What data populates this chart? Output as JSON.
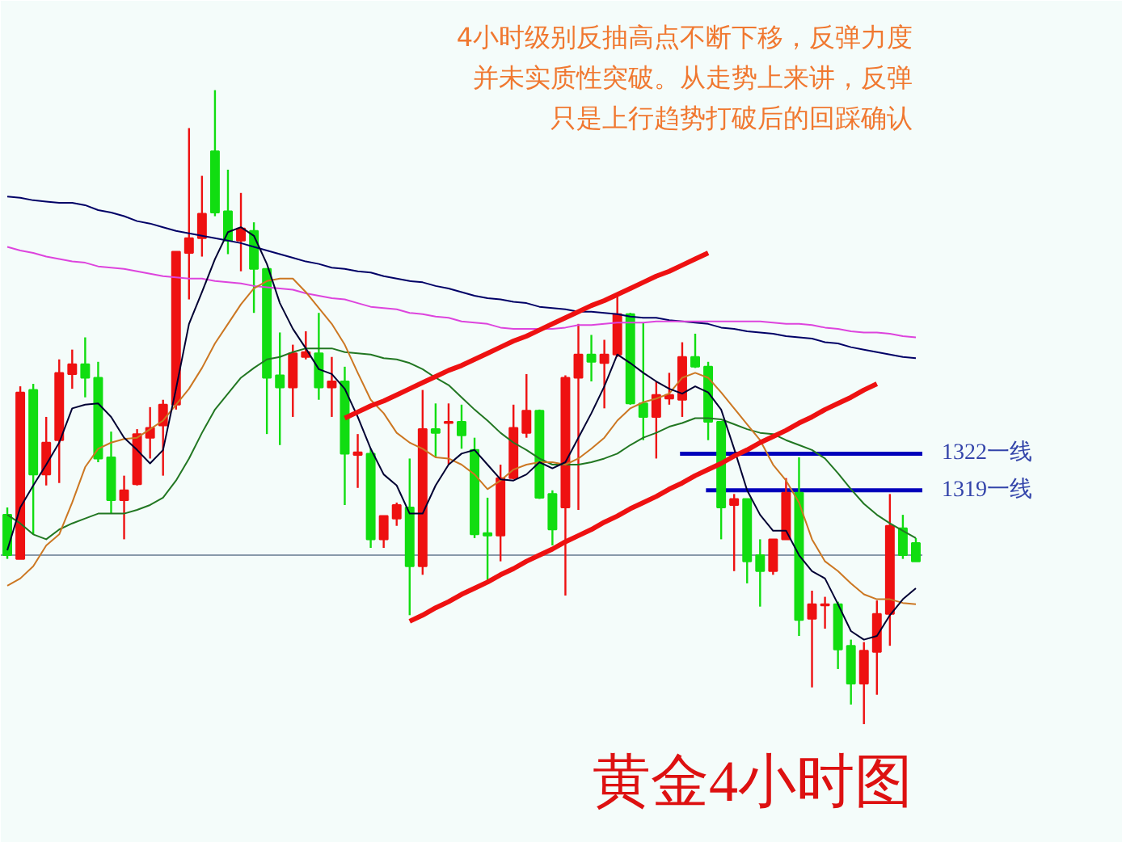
{
  "chart_data": {
    "type": "candlestick",
    "title": "黄金4小时图",
    "annotations": [
      "4小时级别反抽高点不断下移，反弹力度",
      "并未实质性突破。从走势上来讲，反弹",
      "只是上行趋势打破后的回踩确认"
    ],
    "categories": [
      null,
      null,
      null,
      null,
      null,
      null,
      null,
      null,
      null,
      null,
      null,
      null,
      null,
      null,
      null,
      null,
      null,
      null,
      null,
      null,
      null,
      null,
      null,
      null,
      null,
      null,
      null,
      null,
      null,
      null,
      null,
      null,
      null,
      null,
      null,
      null,
      null,
      null,
      null,
      null,
      null,
      null,
      null,
      null,
      null,
      null,
      null,
      null,
      null,
      null,
      null,
      null,
      null,
      null,
      null,
      null,
      null,
      null,
      null,
      null,
      null,
      null,
      null,
      null,
      null,
      null,
      null,
      null,
      null,
      null,
      null
    ],
    "ohlc": [
      [
        1317.0,
        1317.6,
        1313.4,
        1313.7
      ],
      [
        1313.4,
        1327.5,
        1313.4,
        1327.0
      ],
      [
        1327.2,
        1327.7,
        1315.4,
        1320.3
      ],
      [
        1320.3,
        1325.0,
        1319.4,
        1322.9
      ],
      [
        1323.1,
        1329.7,
        1319.6,
        1328.6
      ],
      [
        1328.5,
        1330.5,
        1327.3,
        1329.3
      ],
      [
        1329.3,
        1331.5,
        1326.6,
        1328.2
      ],
      [
        1328.2,
        1329.5,
        1321.3,
        1321.6
      ],
      [
        1321.7,
        1323.8,
        1317.1,
        1318.2
      ],
      [
        1318.2,
        1320.2,
        1315.0,
        1319.0
      ],
      [
        1319.5,
        1324.0,
        1319.4,
        1323.6
      ],
      [
        1323.3,
        1325.8,
        1321.6,
        1324.1
      ],
      [
        1324.3,
        1326.4,
        1320.2,
        1326.0
      ],
      [
        1326.0,
        1338.5,
        1325.6,
        1338.5
      ],
      [
        1338.4,
        1348.6,
        1334.6,
        1339.6
      ],
      [
        1339.6,
        1344.7,
        1338.1,
        1341.6
      ],
      [
        1346.7,
        1351.7,
        1341.4,
        1341.7
      ],
      [
        1341.8,
        1345.2,
        1338.3,
        1339.4
      ],
      [
        1339.4,
        1343.3,
        1336.9,
        1340.4
      ],
      [
        1340.2,
        1340.9,
        1333.5,
        1337.1
      ],
      [
        1337.1,
        1337.1,
        1323.6,
        1328.2
      ],
      [
        1328.4,
        1331.9,
        1322.7,
        1327.4
      ],
      [
        1327.4,
        1330.9,
        1325.0,
        1330.2
      ],
      [
        1329.9,
        1332.0,
        1329.7,
        1330.3
      ],
      [
        1330.2,
        1333.5,
        1326.4,
        1327.4
      ],
      [
        1327.4,
        1329.9,
        1325.0,
        1327.9
      ],
      [
        1327.9,
        1329.1,
        1317.8,
        1322.0
      ],
      [
        1321.9,
        1323.6,
        1319.2,
        1322.1
      ],
      [
        1322.0,
        1322.4,
        1314.3,
        1315.0
      ],
      [
        1315.0,
        1316.9,
        1314.3,
        1316.9
      ],
      [
        1316.7,
        1318.0,
        1316.1,
        1317.8
      ],
      [
        1317.6,
        1321.6,
        1308.8,
        1312.8
      ],
      [
        1312.8,
        1327.2,
        1312.1,
        1324.0
      ],
      [
        1324.0,
        1326.1,
        1321.7,
        1323.7
      ],
      [
        1324.5,
        1326.1,
        1321.1,
        1324.6
      ],
      [
        1324.6,
        1326.0,
        1322.4,
        1323.5
      ],
      [
        1322.3,
        1323.3,
        1315.1,
        1315.4
      ],
      [
        1315.5,
        1318.4,
        1311.4,
        1315.3
      ],
      [
        1315.3,
        1321.1,
        1313.2,
        1320.0
      ],
      [
        1320.0,
        1326.0,
        1319.9,
        1324.1
      ],
      [
        1323.7,
        1328.5,
        1323.3,
        1325.5
      ],
      [
        1325.5,
        1325.6,
        1318.3,
        1318.4
      ],
      [
        1318.7,
        1319.0,
        1314.5,
        1315.8
      ],
      [
        1317.6,
        1328.4,
        1310.4,
        1328.2
      ],
      [
        1328.2,
        1332.6,
        1317.4,
        1330.1
      ],
      [
        1330.1,
        1331.7,
        1327.9,
        1329.5
      ],
      [
        1329.4,
        1331.3,
        1325.7,
        1330.1
      ],
      [
        1330.1,
        1334.9,
        1329.9,
        1333.4
      ],
      [
        1333.4,
        1333.5,
        1326.0,
        1326.1
      ],
      [
        1326.1,
        1332.7,
        1323.1,
        1325.0
      ],
      [
        1325.0,
        1327.9,
        1321.6,
        1326.8
      ],
      [
        1326.5,
        1328.6,
        1326.0,
        1326.8
      ],
      [
        1326.4,
        1331.1,
        1325.0,
        1329.9
      ],
      [
        1329.9,
        1331.8,
        1329.0,
        1329.1
      ],
      [
        1329.1,
        1329.5,
        1323.1,
        1324.6
      ],
      [
        1324.6,
        1324.6,
        1315.0,
        1317.6
      ],
      [
        1317.8,
        1318.7,
        1312.4,
        1318.3
      ],
      [
        1318.3,
        1318.3,
        1311.4,
        1313.2
      ],
      [
        1313.7,
        1315.0,
        1309.5,
        1312.4
      ],
      [
        1312.4,
        1315.0,
        1312.1,
        1315.0
      ],
      [
        1315.0,
        1320.0,
        1315.0,
        1318.8
      ],
      [
        1318.8,
        1321.7,
        1307.1,
        1308.4
      ],
      [
        1308.5,
        1310.8,
        1302.9,
        1309.7
      ],
      [
        1309.6,
        1310.3,
        1307.7,
        1309.7
      ],
      [
        1309.7,
        1309.9,
        1304.4,
        1306.0
      ],
      [
        1306.3,
        1306.8,
        1301.5,
        1303.2
      ],
      [
        1303.2,
        1306.6,
        1299.9,
        1305.9
      ],
      [
        1305.8,
        1310.0,
        1302.3,
        1308.9
      ],
      [
        1308.9,
        1318.7,
        1306.3,
        1316.1
      ],
      [
        1315.9,
        1317.0,
        1313.4,
        1313.7
      ],
      [
        1314.7,
        1315.1,
        1313.2,
        1313.2
      ]
    ],
    "colors": [
      "#11dd11",
      "#ee1111",
      "#11dd11",
      "#ee1111",
      "#ee1111",
      "#ee1111",
      "#11dd11",
      "#11dd11",
      "#11dd11",
      "#ee1111",
      "#ee1111",
      "#ee1111",
      "#ee1111",
      "#ee1111",
      "#ee1111",
      "#ee1111",
      "#11dd11",
      "#11dd11",
      "#ee1111",
      "#11dd11",
      "#11dd11",
      "#11dd11",
      "#ee1111",
      "#ee1111",
      "#11dd11",
      "#ee1111",
      "#11dd11",
      "#ee1111",
      "#11dd11",
      "#ee1111",
      "#ee1111",
      "#11dd11",
      "#ee1111",
      "#11dd11",
      "#ee1111",
      "#11dd11",
      "#11dd11",
      "#11dd11",
      "#ee1111",
      "#ee1111",
      "#ee1111",
      "#11dd11",
      "#11dd11",
      "#ee1111",
      "#ee1111",
      "#11dd11",
      "#ee1111",
      "#ee1111",
      "#11dd11",
      "#11dd11",
      "#ee1111",
      "#ee1111",
      "#ee1111",
      "#11dd11",
      "#11dd11",
      "#11dd11",
      "#ee1111",
      "#11dd11",
      "#11dd11",
      "#ee1111",
      "#ee1111",
      "#11dd11",
      "#ee1111",
      "#ee1111",
      "#11dd11",
      "#11dd11",
      "#ee1111",
      "#ee1111",
      "#ee1111",
      "#11dd11",
      "#11dd11"
    ],
    "series": [
      {
        "type": "line",
        "color": "#000066",
        "values": [
          1343.0,
          1342.9,
          1342.7,
          1342.6,
          1342.5,
          1342.5,
          1342.3,
          1341.9,
          1341.7,
          1341.4,
          1341.0,
          1340.8,
          1340.5,
          1340.2,
          1340.0,
          1339.8,
          1339.6,
          1339.4,
          1339.2,
          1338.9,
          1338.6,
          1338.3,
          1338.0,
          1337.7,
          1337.5,
          1337.2,
          1337.1,
          1336.9,
          1336.8,
          1336.5,
          1336.3,
          1336.1,
          1336.0,
          1335.7,
          1335.5,
          1335.2,
          1334.9,
          1334.7,
          1334.6,
          1334.4,
          1334.3,
          1334.0,
          1333.9,
          1333.8,
          1333.6,
          1333.6,
          1333.5,
          1333.4,
          1333.2,
          1333.1,
          1333.1,
          1332.9,
          1332.8,
          1332.7,
          1332.6,
          1332.3,
          1332.2,
          1332.0,
          1331.9,
          1331.8,
          1331.6,
          1331.5,
          1331.4,
          1331.1,
          1331.0,
          1330.7,
          1330.5,
          1330.3,
          1330.1,
          1329.9,
          1329.8
        ]
      },
      {
        "type": "line",
        "color": "#dd44dd",
        "values": [
          1338.9,
          1338.6,
          1338.4,
          1338.1,
          1337.9,
          1337.7,
          1337.6,
          1337.3,
          1337.2,
          1337.1,
          1336.9,
          1336.7,
          1336.5,
          1336.4,
          1336.3,
          1336.3,
          1336.1,
          1336.0,
          1335.9,
          1335.7,
          1335.6,
          1335.5,
          1335.4,
          1335.1,
          1334.9,
          1334.7,
          1334.6,
          1334.3,
          1334.0,
          1333.9,
          1333.8,
          1333.5,
          1333.4,
          1333.2,
          1333.1,
          1332.8,
          1332.7,
          1332.6,
          1332.3,
          1332.2,
          1332.2,
          1332.2,
          1332.2,
          1332.3,
          1332.5,
          1332.5,
          1332.6,
          1332.7,
          1332.7,
          1332.7,
          1332.8,
          1332.8,
          1332.8,
          1332.8,
          1332.8,
          1332.8,
          1332.8,
          1332.8,
          1332.8,
          1332.7,
          1332.6,
          1332.6,
          1332.5,
          1332.3,
          1332.2,
          1332.0,
          1331.9,
          1331.9,
          1331.8,
          1331.6,
          1331.5
        ]
      },
      {
        "type": "line",
        "color": "#227722",
        "values": [
          1317.0,
          1316.3,
          1315.4,
          1315.0,
          1315.8,
          1316.3,
          1316.7,
          1317.1,
          1317.1,
          1317.1,
          1317.4,
          1317.8,
          1318.4,
          1319.8,
          1321.6,
          1323.7,
          1325.6,
          1326.9,
          1328.2,
          1329.0,
          1329.7,
          1329.9,
          1330.3,
          1330.6,
          1330.6,
          1330.6,
          1330.3,
          1330.2,
          1330.1,
          1329.8,
          1329.7,
          1329.4,
          1328.9,
          1328.2,
          1327.6,
          1326.6,
          1325.6,
          1324.7,
          1323.7,
          1322.9,
          1322.3,
          1321.6,
          1321.1,
          1321.1,
          1321.1,
          1321.3,
          1321.6,
          1322.0,
          1322.7,
          1323.3,
          1323.7,
          1324.2,
          1324.5,
          1324.9,
          1324.9,
          1324.8,
          1324.4,
          1324.0,
          1323.7,
          1323.6,
          1323.1,
          1322.7,
          1322.3,
          1321.6,
          1320.4,
          1319.1,
          1317.9,
          1317.0,
          1316.3,
          1315.7,
          1315.1
        ]
      },
      {
        "type": "line",
        "color": "#cc7722",
        "values": [
          1311.2,
          1311.8,
          1312.8,
          1314.5,
          1315.4,
          1318.0,
          1320.9,
          1322.4,
          1322.9,
          1323.2,
          1323.3,
          1324.0,
          1324.7,
          1326.0,
          1327.3,
          1329.0,
          1331.0,
          1332.6,
          1334.2,
          1335.5,
          1336.1,
          1336.3,
          1336.3,
          1335.2,
          1333.9,
          1332.6,
          1330.9,
          1328.6,
          1326.4,
          1325.3,
          1323.7,
          1322.9,
          1322.4,
          1321.7,
          1321.6,
          1321.1,
          1320.3,
          1319.1,
          1319.8,
          1320.7,
          1321.1,
          1321.3,
          1321.3,
          1321.1,
          1321.6,
          1322.4,
          1323.3,
          1324.7,
          1325.7,
          1326.2,
          1326.5,
          1326.9,
          1328.2,
          1328.6,
          1328.2,
          1327.0,
          1325.7,
          1324.4,
          1323.1,
          1321.1,
          1319.8,
          1318.0,
          1315.0,
          1313.2,
          1312.4,
          1311.4,
          1310.5,
          1310.1,
          1310.1,
          1309.8,
          1309.7
        ]
      },
      {
        "type": "line",
        "color": "#000033",
        "values": [
          1314.1,
          1317.6,
          1319.4,
          1321.1,
          1322.9,
          1325.7,
          1326.0,
          1326.1,
          1325.0,
          1323.3,
          1322.3,
          1321.2,
          1322.3,
          1327.3,
          1332.6,
          1335.2,
          1337.9,
          1340.1,
          1340.5,
          1339.8,
          1337.5,
          1334.3,
          1332.2,
          1330.6,
          1328.9,
          1328.5,
          1327.3,
          1325.0,
          1322.4,
          1320.3,
          1319.4,
          1317.1,
          1317.1,
          1319.4,
          1321.1,
          1322.0,
          1322.3,
          1321.1,
          1319.9,
          1319.8,
          1320.3,
          1321.3,
          1320.8,
          1321.3,
          1323.3,
          1325.3,
          1327.5,
          1330.1,
          1329.4,
          1328.6,
          1327.9,
          1327.3,
          1326.9,
          1327.5,
          1327.0,
          1325.6,
          1322.4,
          1319.0,
          1317.0,
          1315.7,
          1315.7,
          1313.7,
          1312.4,
          1311.8,
          1309.7,
          1307.5,
          1306.8,
          1307.1,
          1308.8,
          1310.1,
          1311.0
        ]
      },
      {
        "type": "line",
        "color": "#ee1111",
        "values": [
          null,
          null,
          null,
          null,
          null,
          null,
          null,
          null,
          null,
          null,
          null,
          null,
          null,
          null,
          null,
          null,
          null,
          null,
          null,
          null,
          null,
          null,
          null,
          null,
          null,
          null,
          1324.9,
          1325.4,
          1325.9,
          1326.3,
          1326.8,
          1327.3,
          1327.8,
          1328.3,
          1328.8,
          1329.2,
          1329.7,
          1330.2,
          1330.7,
          1331.2,
          1331.6,
          1332.1,
          1332.6,
          1333.1,
          1333.6,
          1334.1,
          1334.5,
          1335.0,
          1335.5,
          1336.0,
          1336.5,
          1336.9,
          1337.4,
          1337.9,
          1338.4,
          null,
          null,
          null,
          null,
          null,
          null,
          null,
          null,
          null,
          null,
          null,
          null,
          null,
          null,
          null,
          null
        ]
      },
      {
        "type": "line",
        "color": "#ee1111",
        "values": [
          null,
          null,
          null,
          null,
          null,
          null,
          null,
          null,
          null,
          null,
          null,
          null,
          null,
          null,
          null,
          null,
          null,
          null,
          null,
          null,
          null,
          null,
          null,
          null,
          null,
          null,
          null,
          null,
          null,
          null,
          null,
          1308.3,
          1308.8,
          1309.4,
          1309.9,
          1310.5,
          1311.0,
          1311.5,
          1312.1,
          1312.6,
          1313.2,
          1313.7,
          1314.2,
          1314.8,
          1315.3,
          1315.8,
          1316.4,
          1316.9,
          1317.5,
          1318.0,
          1318.5,
          1319.1,
          1319.6,
          1320.2,
          1320.7,
          1321.2,
          1321.8,
          1322.3,
          1322.9,
          1323.4,
          1323.9,
          1324.5,
          1325.0,
          1325.6,
          1326.1,
          1326.6,
          1327.2,
          1327.7,
          null,
          null,
          null
        ]
      }
    ],
    "ylim": [
      1290.2,
      1359.0
    ],
    "tick_labels": false,
    "ref_lines": [
      {
        "axis": "y",
        "value": 1322,
        "label": "1322一线",
        "color": "#0000bb"
      },
      {
        "axis": "y",
        "value": 1319,
        "label": "1319一线",
        "color": "#0000bb"
      },
      {
        "axis": "y",
        "value": 1313.7,
        "color": "#8899aa"
      }
    ]
  }
}
